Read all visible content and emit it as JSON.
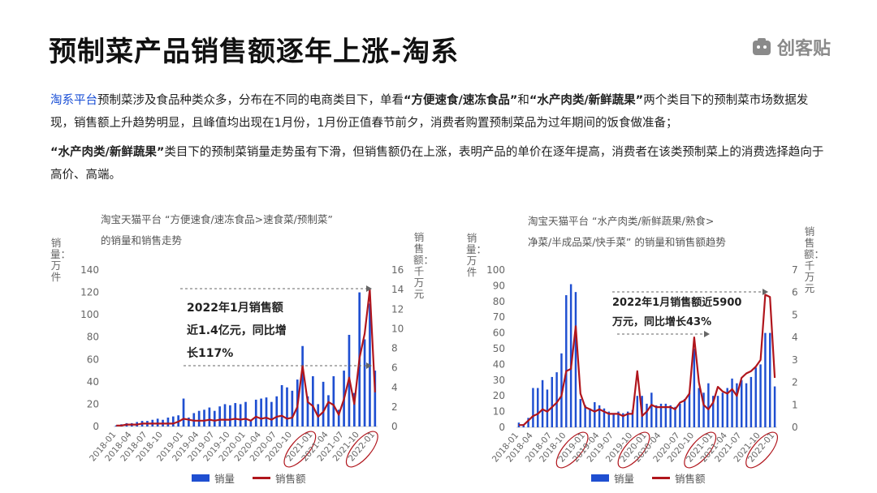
{
  "page": {
    "title": "预制菜产品销售额逐年上涨-淘系",
    "logo_text": "创客贴",
    "p1": {
      "lead": "淘系平台",
      "t1": "预制菜涉及食品种类众多，分布在不同的电商类目下，单看",
      "q1": "“方便速食/速冻食品”",
      "t2": "和",
      "q2": "“水产肉类/新鲜蔬果”",
      "t3": "两个类目下的预制菜市场数据发现，销售额上升趋势明显，且峰值均出现在1月份，1月份正值春节前夕，消费者购置预制菜品为过年期间的饭食做准备；"
    },
    "p2": {
      "q": "“水产肉类/新鲜蔬果”",
      "t": "类目下的预制菜销量走势虽有下滑，但销售额仍在上涨，表明产品的单价在逐年提高，消费者在该类预制菜上的消费选择趋向于高价、高端。"
    },
    "colors": {
      "bar": "#1f4fd1",
      "line": "#b0151c",
      "highlight": "#1a4fd6"
    }
  },
  "chart_data": [
    {
      "type": "bar+line",
      "title_line1": "淘宝天猫平台 “方便速食/速冻食品>速食菜/预制菜”",
      "title_line2": "的销量和销售走势",
      "ylabel_left": "销量：万件",
      "ylabel_right": "销售额：千万元",
      "ylim_left": [
        0,
        140
      ],
      "yticks_left": [
        0,
        20,
        40,
        60,
        80,
        100,
        120,
        140
      ],
      "ylim_right": [
        0,
        16
      ],
      "yticks_right": [
        0,
        2,
        4,
        6,
        8,
        10,
        12,
        14,
        16
      ],
      "x_tick_labels": [
        "2018-01",
        "2018-04",
        "2018-07",
        "2018-10",
        "2019-01",
        "2019-04",
        "2019-07",
        "2019-10",
        "2020-01",
        "2020-04",
        "2020-07",
        "2020-10",
        "2021-01",
        "2021-04",
        "2021-07",
        "2021-10",
        "2022-01"
      ],
      "circled_ticks": [
        "2021-01",
        "2022-01"
      ],
      "annotation": [
        "2022年1月销售额",
        "近1.4亿元，同比增",
        "长117%"
      ],
      "series": [
        {
          "name": "销量",
          "kind": "bar",
          "values": [
            1,
            2,
            3,
            3,
            4,
            5,
            5,
            6,
            7,
            6,
            8,
            9,
            10,
            25,
            8,
            12,
            14,
            15,
            17,
            14,
            18,
            20,
            19,
            21,
            20,
            22,
            5,
            24,
            25,
            26,
            22,
            27,
            37,
            35,
            32,
            42,
            72,
            27,
            45,
            20,
            40,
            28,
            45,
            15,
            50,
            82,
            30,
            120,
            78,
            110,
            50
          ]
        },
        {
          "name": "销售额",
          "kind": "line",
          "values": [
            0.1,
            0.1,
            0.2,
            0.2,
            0.2,
            0.3,
            0.3,
            0.3,
            0.3,
            0.3,
            0.3,
            0.3,
            0.5,
            0.8,
            0.7,
            0.6,
            0.6,
            0.6,
            0.7,
            0.6,
            0.7,
            0.7,
            0.7,
            0.8,
            0.7,
            0.8,
            0.6,
            1.0,
            0.8,
            0.9,
            0.7,
            1.0,
            1.1,
            0.8,
            0.9,
            2.0,
            6.2,
            2.5,
            2.1,
            1.0,
            1.5,
            2.5,
            2.2,
            1.2,
            2.8,
            5.0,
            2.3,
            7.0,
            9.5,
            14.0,
            3.5
          ]
        }
      ]
    },
    {
      "type": "bar+line",
      "title_line1": "淘宝天猫平台 “水产肉类/新鲜蔬果/熟食>",
      "title_line2": "净菜/半成品菜/快手菜” 的销量和销售额趋势",
      "ylabel_left": "销量：万件",
      "ylabel_right": "销售额：千万元",
      "ylim_left": [
        0,
        100
      ],
      "yticks_left": [
        0,
        10,
        20,
        30,
        40,
        50,
        60,
        70,
        80,
        90,
        100
      ],
      "ylim_right": [
        0,
        7
      ],
      "yticks_right": [
        0,
        1,
        2,
        3,
        4,
        5,
        6,
        7
      ],
      "x_tick_labels": [
        "2018-01",
        "2018-04",
        "2018-07",
        "2018-10",
        "2019-01",
        "2019-04",
        "2019-07",
        "2019-10",
        "2020-01",
        "2020-04",
        "2020-07",
        "2020-10",
        "2021-01",
        "2021-04",
        "2021-07",
        "2021-10",
        "2022-01"
      ],
      "circled_ticks": [
        "2019-01",
        "2020-01",
        "2021-01",
        "2022-01"
      ],
      "annotation": [
        "2022年1月销售额近5900",
        "万元，同比增长43%"
      ],
      "series": [
        {
          "name": "销量",
          "kind": "bar",
          "values": [
            3,
            2,
            6,
            25,
            25,
            30,
            24,
            32,
            35,
            47,
            84,
            91,
            86,
            18,
            14,
            12,
            16,
            14,
            12,
            10,
            9,
            10,
            9,
            10,
            11,
            20,
            20,
            15,
            22,
            14,
            15,
            15,
            14,
            13,
            15,
            18,
            22,
            50,
            25,
            22,
            28,
            20,
            20,
            22,
            25,
            31,
            28,
            30,
            28,
            32,
            38,
            40,
            60,
            60,
            26
          ]
        },
        {
          "name": "销售额",
          "kind": "line",
          "values": [
            0.1,
            0.1,
            0.3,
            0.5,
            0.6,
            0.8,
            0.7,
            0.9,
            1.1,
            1.4,
            2.5,
            2.6,
            4.5,
            1.5,
            0.9,
            0.8,
            0.7,
            0.8,
            0.7,
            0.6,
            0.6,
            0.6,
            0.5,
            0.6,
            0.6,
            2.5,
            0.5,
            0.7,
            1.0,
            0.9,
            0.9,
            0.9,
            0.9,
            0.8,
            1.1,
            1.2,
            1.5,
            4.0,
            2.0,
            1.0,
            0.8,
            1.1,
            1.8,
            1.6,
            1.5,
            1.7,
            1.4,
            2.2,
            2.4,
            2.5,
            2.7,
            3.0,
            5.9,
            5.8,
            2.2
          ]
        }
      ]
    }
  ]
}
